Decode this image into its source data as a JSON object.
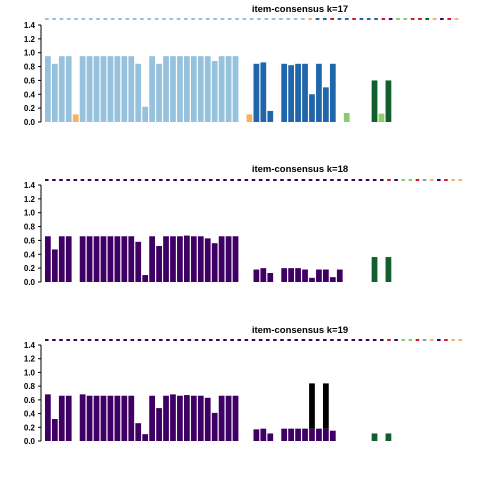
{
  "chart_data": [
    {
      "type": "bar",
      "title": "item-consensus k=17",
      "ylim": [
        0,
        1.4
      ],
      "yticks": [
        "0.0",
        "0.2",
        "0.4",
        "0.6",
        "0.8",
        "1.0",
        "1.2",
        "1.4"
      ],
      "items": 60,
      "colors": {
        "a": "#96C2DE",
        "b": "#FAAE61",
        "c": "#2066AB",
        "d": "#8CCC6A",
        "e": "#115E2E",
        "m": "#4B0082",
        "r": "#E0112C"
      },
      "top_strip": "aaaaaaaaaaaaaaaaaaaaaaaaaaaaaaaaaaaaaaaaaaaaaaaaaaaaaaaaaaaaaaaaaaaaaaabbbcccrrcccccrrccccccrrmmddddrrreebbmmrrbbb",
      "bars": [
        {
          "i": 0,
          "h": 0.95,
          "c": "a"
        },
        {
          "i": 1,
          "h": 0.84,
          "c": "a"
        },
        {
          "i": 2,
          "h": 0.95,
          "c": "a"
        },
        {
          "i": 3,
          "h": 0.95,
          "c": "a"
        },
        {
          "i": 4,
          "h": 0.11,
          "c": "b"
        },
        {
          "i": 5,
          "h": 0.95,
          "c": "a"
        },
        {
          "i": 6,
          "h": 0.95,
          "c": "a"
        },
        {
          "i": 7,
          "h": 0.95,
          "c": "a"
        },
        {
          "i": 8,
          "h": 0.95,
          "c": "a"
        },
        {
          "i": 9,
          "h": 0.95,
          "c": "a"
        },
        {
          "i": 10,
          "h": 0.95,
          "c": "a"
        },
        {
          "i": 11,
          "h": 0.95,
          "c": "a"
        },
        {
          "i": 12,
          "h": 0.95,
          "c": "a"
        },
        {
          "i": 13,
          "h": 0.84,
          "c": "a"
        },
        {
          "i": 14,
          "h": 0.22,
          "c": "a"
        },
        {
          "i": 15,
          "h": 0.95,
          "c": "a"
        },
        {
          "i": 16,
          "h": 0.84,
          "c": "a"
        },
        {
          "i": 17,
          "h": 0.95,
          "c": "a"
        },
        {
          "i": 18,
          "h": 0.95,
          "c": "a"
        },
        {
          "i": 19,
          "h": 0.95,
          "c": "a"
        },
        {
          "i": 20,
          "h": 0.95,
          "c": "a"
        },
        {
          "i": 21,
          "h": 0.95,
          "c": "a"
        },
        {
          "i": 22,
          "h": 0.95,
          "c": "a"
        },
        {
          "i": 23,
          "h": 0.95,
          "c": "a"
        },
        {
          "i": 24,
          "h": 0.88,
          "c": "a"
        },
        {
          "i": 25,
          "h": 0.95,
          "c": "a"
        },
        {
          "i": 26,
          "h": 0.95,
          "c": "a"
        },
        {
          "i": 27,
          "h": 0.95,
          "c": "a"
        },
        {
          "i": 29,
          "h": 0.11,
          "c": "b"
        },
        {
          "i": 30,
          "h": 0.84,
          "c": "c"
        },
        {
          "i": 31,
          "h": 0.86,
          "c": "c"
        },
        {
          "i": 32,
          "h": 0.16,
          "c": "c"
        },
        {
          "i": 34,
          "h": 0.84,
          "c": "c"
        },
        {
          "i": 35,
          "h": 0.82,
          "c": "c"
        },
        {
          "i": 36,
          "h": 0.84,
          "c": "c"
        },
        {
          "i": 37,
          "h": 0.84,
          "c": "c"
        },
        {
          "i": 38,
          "h": 0.4,
          "c": "c"
        },
        {
          "i": 39,
          "h": 0.84,
          "c": "c"
        },
        {
          "i": 40,
          "h": 0.5,
          "c": "c"
        },
        {
          "i": 41,
          "h": 0.84,
          "c": "c"
        },
        {
          "i": 43,
          "h": 0.13,
          "c": "d"
        },
        {
          "i": 47,
          "h": 0.6,
          "c": "e"
        },
        {
          "i": 48,
          "h": 0.12,
          "c": "d"
        },
        {
          "i": 49,
          "h": 0.6,
          "c": "e"
        }
      ]
    },
    {
      "type": "bar",
      "title": "item-consensus k=18",
      "ylim": [
        0,
        1.4
      ],
      "yticks": [
        "0.0",
        "0.2",
        "0.4",
        "0.6",
        "0.8",
        "1.0",
        "1.2",
        "1.4"
      ],
      "items": 60,
      "colors": {
        "m": "#3F0066",
        "g": "#115E2E",
        "d": "#8CCC6A",
        "o": "#FAAE61",
        "r": "#E0112C"
      },
      "top_strip": "mmmmmmmmmmmmmmmmmmmmmmmmmmmmmmmmmmmmmmmmmmmmmmmmmmmmmmmmmmmmmmmmmmmmmmmmmmmmmmmmmmmmmmmmmmmmmmmrrmmddddrrreeoommrrooo",
      "bars": [
        {
          "i": 0,
          "h": 0.66,
          "c": "m"
        },
        {
          "i": 1,
          "h": 0.47,
          "c": "m"
        },
        {
          "i": 2,
          "h": 0.66,
          "c": "m"
        },
        {
          "i": 3,
          "h": 0.66,
          "c": "m"
        },
        {
          "i": 5,
          "h": 0.66,
          "c": "m"
        },
        {
          "i": 6,
          "h": 0.66,
          "c": "m"
        },
        {
          "i": 7,
          "h": 0.66,
          "c": "m"
        },
        {
          "i": 8,
          "h": 0.66,
          "c": "m"
        },
        {
          "i": 9,
          "h": 0.66,
          "c": "m"
        },
        {
          "i": 10,
          "h": 0.66,
          "c": "m"
        },
        {
          "i": 11,
          "h": 0.66,
          "c": "m"
        },
        {
          "i": 12,
          "h": 0.66,
          "c": "m"
        },
        {
          "i": 13,
          "h": 0.58,
          "c": "m"
        },
        {
          "i": 14,
          "h": 0.1,
          "c": "m"
        },
        {
          "i": 15,
          "h": 0.66,
          "c": "m"
        },
        {
          "i": 16,
          "h": 0.52,
          "c": "m"
        },
        {
          "i": 17,
          "h": 0.66,
          "c": "m"
        },
        {
          "i": 18,
          "h": 0.66,
          "c": "m"
        },
        {
          "i": 19,
          "h": 0.66,
          "c": "m"
        },
        {
          "i": 20,
          "h": 0.67,
          "c": "m"
        },
        {
          "i": 21,
          "h": 0.66,
          "c": "m"
        },
        {
          "i": 22,
          "h": 0.66,
          "c": "m"
        },
        {
          "i": 23,
          "h": 0.63,
          "c": "m"
        },
        {
          "i": 24,
          "h": 0.56,
          "c": "m"
        },
        {
          "i": 25,
          "h": 0.66,
          "c": "m"
        },
        {
          "i": 26,
          "h": 0.66,
          "c": "m"
        },
        {
          "i": 27,
          "h": 0.66,
          "c": "m"
        },
        {
          "i": 30,
          "h": 0.18,
          "c": "m"
        },
        {
          "i": 31,
          "h": 0.2,
          "c": "m"
        },
        {
          "i": 32,
          "h": 0.13,
          "c": "m"
        },
        {
          "i": 34,
          "h": 0.2,
          "c": "m"
        },
        {
          "i": 35,
          "h": 0.2,
          "c": "m"
        },
        {
          "i": 36,
          "h": 0.2,
          "c": "m"
        },
        {
          "i": 37,
          "h": 0.18,
          "c": "m"
        },
        {
          "i": 38,
          "h": 0.06,
          "c": "m"
        },
        {
          "i": 39,
          "h": 0.18,
          "c": "m"
        },
        {
          "i": 40,
          "h": 0.18,
          "c": "m"
        },
        {
          "i": 41,
          "h": 0.07,
          "c": "m"
        },
        {
          "i": 42,
          "h": 0.18,
          "c": "m"
        },
        {
          "i": 47,
          "h": 0.36,
          "c": "g"
        },
        {
          "i": 49,
          "h": 0.36,
          "c": "g"
        }
      ]
    },
    {
      "type": "bar",
      "title": "item-consensus k=19",
      "ylim": [
        0,
        1.4
      ],
      "yticks": [
        "0.0",
        "0.2",
        "0.4",
        "0.6",
        "0.8",
        "1.0",
        "1.2",
        "1.4"
      ],
      "items": 60,
      "colors": {
        "m": "#3F0066",
        "k": "#000000",
        "g": "#115E2E",
        "d": "#8CCC6A",
        "o": "#FAAE61",
        "r": "#E0112C"
      },
      "top_strip": "mmmmmmmmmmmmmmmmmmmmmmmmmmmmmmmmmmmmmmmmmmmmmmmmmmmmmmmmmmmmmmmmmmmmmmmmmmmmmmmmmmmmmmmmmmmmmmmrrmmddddrrreeoommrrooo",
      "bars": [
        {
          "i": 0,
          "h": 0.68,
          "c": "m"
        },
        {
          "i": 1,
          "h": 0.32,
          "c": "m"
        },
        {
          "i": 2,
          "h": 0.66,
          "c": "m"
        },
        {
          "i": 3,
          "h": 0.66,
          "c": "m"
        },
        {
          "i": 5,
          "h": 0.68,
          "c": "m"
        },
        {
          "i": 6,
          "h": 0.66,
          "c": "m"
        },
        {
          "i": 7,
          "h": 0.66,
          "c": "m"
        },
        {
          "i": 8,
          "h": 0.66,
          "c": "m"
        },
        {
          "i": 9,
          "h": 0.66,
          "c": "m"
        },
        {
          "i": 10,
          "h": 0.66,
          "c": "m"
        },
        {
          "i": 11,
          "h": 0.66,
          "c": "m"
        },
        {
          "i": 12,
          "h": 0.66,
          "c": "m"
        },
        {
          "i": 13,
          "h": 0.26,
          "c": "m"
        },
        {
          "i": 14,
          "h": 0.1,
          "c": "m"
        },
        {
          "i": 15,
          "h": 0.66,
          "c": "m"
        },
        {
          "i": 16,
          "h": 0.48,
          "c": "m"
        },
        {
          "i": 17,
          "h": 0.66,
          "c": "m"
        },
        {
          "i": 18,
          "h": 0.68,
          "c": "m"
        },
        {
          "i": 19,
          "h": 0.66,
          "c": "m"
        },
        {
          "i": 20,
          "h": 0.67,
          "c": "m"
        },
        {
          "i": 21,
          "h": 0.66,
          "c": "m"
        },
        {
          "i": 22,
          "h": 0.66,
          "c": "m"
        },
        {
          "i": 23,
          "h": 0.63,
          "c": "m"
        },
        {
          "i": 24,
          "h": 0.41,
          "c": "m"
        },
        {
          "i": 25,
          "h": 0.66,
          "c": "m"
        },
        {
          "i": 26,
          "h": 0.66,
          "c": "m"
        },
        {
          "i": 27,
          "h": 0.66,
          "c": "m"
        },
        {
          "i": 30,
          "h": 0.17,
          "c": "m"
        },
        {
          "i": 31,
          "h": 0.18,
          "c": "m"
        },
        {
          "i": 32,
          "h": 0.11,
          "c": "m"
        },
        {
          "i": 34,
          "h": 0.18,
          "c": "m"
        },
        {
          "i": 35,
          "h": 0.18,
          "c": "m"
        },
        {
          "i": 36,
          "h": 0.18,
          "c": "m"
        },
        {
          "i": 37,
          "h": 0.18,
          "c": "m"
        },
        {
          "i": 38,
          "h": 0.18,
          "c": "m",
          "top": 0.84,
          "top_c": "k"
        },
        {
          "i": 39,
          "h": 0.18,
          "c": "m"
        },
        {
          "i": 40,
          "h": 0.18,
          "c": "m",
          "top": 0.84,
          "top_c": "k"
        },
        {
          "i": 41,
          "h": 0.15,
          "c": "m"
        },
        {
          "i": 47,
          "h": 0.11,
          "c": "g"
        },
        {
          "i": 49,
          "h": 0.11,
          "c": "g"
        }
      ]
    }
  ]
}
